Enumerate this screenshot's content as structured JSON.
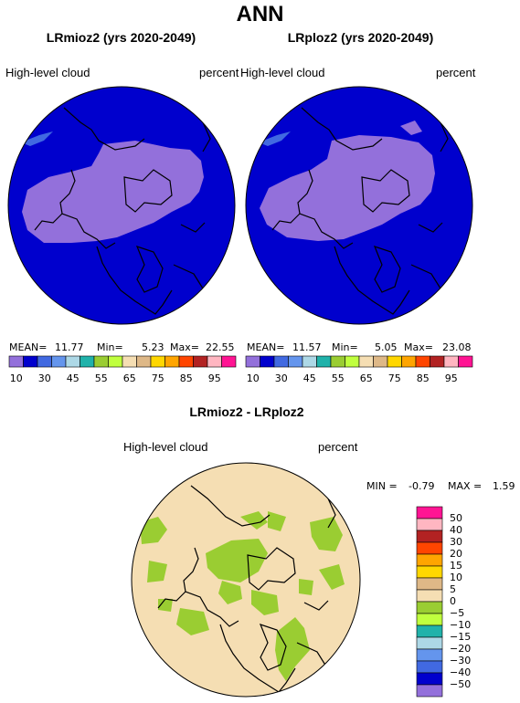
{
  "header": {
    "title": "ANN"
  },
  "panels": [
    {
      "title": "LRmioz2 (yrs 2020-2049)",
      "variable": "High-level cloud",
      "units": "percent",
      "stats": {
        "mean_label": "MEAN=",
        "mean": "11.77",
        "min_label": "Min=",
        "min": "5.23",
        "max_label": "Max=",
        "max": "22.55"
      }
    },
    {
      "title": "LRploz2 (yrs 2020-2049)",
      "variable": "High-level cloud",
      "units": "percent",
      "stats": {
        "mean_label": "MEAN=",
        "mean": "11.57",
        "min_label": "Min=",
        "min": "5.05",
        "max_label": "Max=",
        "max": "23.08"
      }
    }
  ],
  "colorbar": {
    "colors": [
      "#9370db",
      "#0000cd",
      "#4169e1",
      "#6495ed",
      "#add8e6",
      "#20b2aa",
      "#9acd32",
      "#c0ff3e",
      "#f5deb3",
      "#deb887",
      "#ffd700",
      "#ffa500",
      "#ff4500",
      "#b22222",
      "#ffb6c1",
      "#ff1493"
    ],
    "ticks": [
      "10",
      "30",
      "45",
      "55",
      "65",
      "75",
      "85",
      "95"
    ]
  },
  "diff": {
    "title": "LRmioz2 - LRploz2",
    "variable": "High-level cloud",
    "units": "percent",
    "stats": {
      "min_label": "MIN =",
      "min": "-0.79",
      "max_label": "MAX =",
      "max": "1.59"
    },
    "colorbar": {
      "colors": [
        "#ff1493",
        "#ffb6c1",
        "#b22222",
        "#ff4500",
        "#ffa500",
        "#ffd700",
        "#deb887",
        "#f5deb3",
        "#9acd32",
        "#c0ff3e",
        "#20b2aa",
        "#add8e6",
        "#6495ed",
        "#4169e1",
        "#0000cd",
        "#9370db"
      ],
      "ticks": [
        "50",
        "40",
        "30",
        "20",
        "15",
        "10",
        "5",
        "0",
        "−5",
        "−10",
        "−15",
        "−20",
        "−30",
        "−40",
        "−50"
      ]
    }
  }
}
